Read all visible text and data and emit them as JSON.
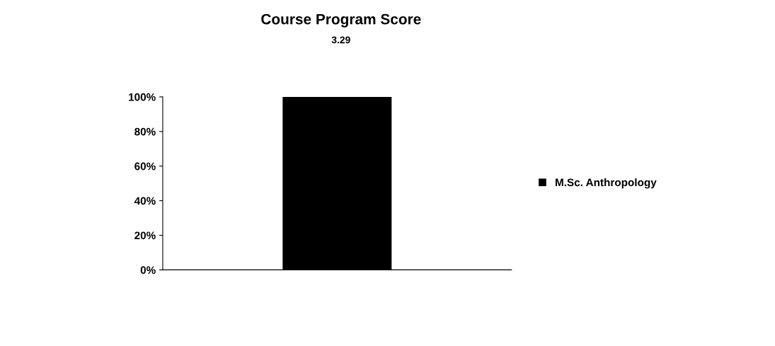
{
  "chart_data": {
    "type": "bar",
    "title": "Course Program Score",
    "subtitle": "3.29",
    "categories": [
      null
    ],
    "series": [
      {
        "name": "M.Sc. Anthropology",
        "color": "#000000",
        "values": [
          100
        ]
      }
    ],
    "ylim": [
      0,
      100
    ],
    "yticks": [
      {
        "value": 0,
        "label": "0%"
      },
      {
        "value": 20,
        "label": "20%"
      },
      {
        "value": 40,
        "label": "40%"
      },
      {
        "value": 60,
        "label": "60%"
      },
      {
        "value": 80,
        "label": "80%"
      },
      {
        "value": 100,
        "label": "100%"
      }
    ],
    "grid": false,
    "legend": "right"
  }
}
